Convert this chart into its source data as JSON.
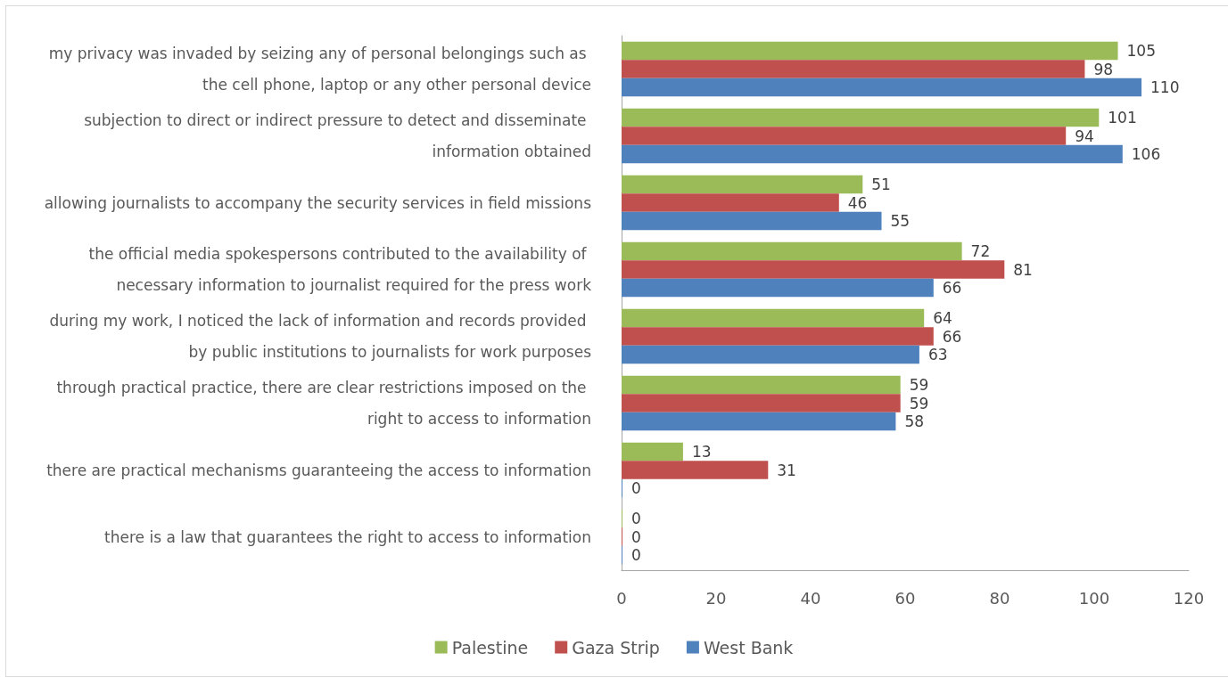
{
  "chart_data": {
    "type": "bar",
    "orientation": "horizontal",
    "categories": [
      "my privacy was invaded by seizing any of personal belongings such as the cell phone, laptop or any other personal device",
      "subjection to direct or indirect pressure to detect and disseminate information obtained",
      "allowing journalists to accompany the security services in field missions",
      "the official media spokespersons contributed to the availability of necessary information to journalist required for the press work",
      "during my work, I noticed the lack of information and records provided by public institutions to journalists for work purposes",
      "through practical practice, there are clear restrictions imposed on the right to access to information",
      "there are practical mechanisms guaranteeing the access to information",
      "there is a law that guarantees the right to access to information"
    ],
    "series": [
      {
        "name": "Palestine",
        "color": "#9bbb59",
        "values": [
          105,
          101,
          51,
          72,
          64,
          59,
          13,
          0
        ]
      },
      {
        "name": "Gaza Strip",
        "color": "#c0504d",
        "values": [
          98,
          94,
          46,
          81,
          66,
          59,
          31,
          0
        ]
      },
      {
        "name": "West Bank",
        "color": "#4f81bd",
        "values": [
          110,
          106,
          55,
          66,
          63,
          58,
          0,
          0
        ]
      }
    ],
    "xlim": [
      0,
      120
    ],
    "xticks": [
      0,
      20,
      40,
      60,
      80,
      100,
      120
    ],
    "data_labels": true,
    "legend": "bottom",
    "grid": false
  }
}
